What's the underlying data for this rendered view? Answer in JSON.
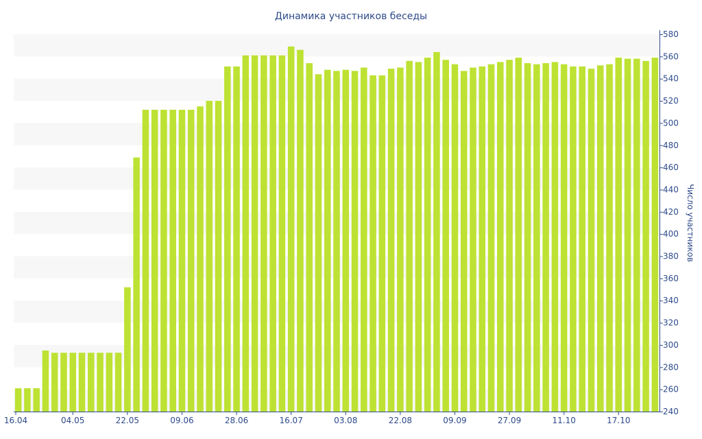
{
  "chart_data": {
    "type": "bar",
    "title": "Динамика участников беседы",
    "xlabel": "",
    "ylabel": "Число участников",
    "ylim": [
      240,
      580
    ],
    "yticks": [
      240,
      260,
      280,
      300,
      320,
      340,
      360,
      380,
      400,
      420,
      440,
      460,
      480,
      500,
      520,
      540,
      560,
      580
    ],
    "y_axis_side": "right",
    "grid": "alternating horizontal bands",
    "x_tick_labels": [
      {
        "index": 0,
        "label": "16.04"
      },
      {
        "index": 6,
        "label": "04.05"
      },
      {
        "index": 12,
        "label": "22.05"
      },
      {
        "index": 18,
        "label": "09.06"
      },
      {
        "index": 24,
        "label": "28.06"
      },
      {
        "index": 30,
        "label": "16.07"
      },
      {
        "index": 36,
        "label": "03.08"
      },
      {
        "index": 42,
        "label": "22.08"
      },
      {
        "index": 48,
        "label": "09.09"
      },
      {
        "index": 54,
        "label": "27.09"
      },
      {
        "index": 60,
        "label": "11.10"
      },
      {
        "index": 66,
        "label": "17.10"
      }
    ],
    "values": [
      261,
      261,
      261,
      295,
      293,
      293,
      293,
      293,
      293,
      293,
      293,
      293,
      352,
      469,
      512,
      512,
      512,
      512,
      512,
      512,
      515,
      520,
      520,
      551,
      551,
      561,
      561,
      561,
      561,
      561,
      569,
      566,
      554,
      544,
      548,
      547,
      548,
      547,
      550,
      543,
      543,
      549,
      550,
      556,
      555,
      559,
      564,
      557,
      553,
      547,
      550,
      551,
      553,
      555,
      557,
      559,
      554,
      553,
      554,
      555,
      553,
      551,
      551,
      549,
      552,
      553,
      559,
      558,
      558,
      556,
      559
    ],
    "colors": {
      "bar": "#bde233",
      "band": "#f7f7f7",
      "axis": "#2d4a8a",
      "text": "#2d4a8a"
    }
  }
}
